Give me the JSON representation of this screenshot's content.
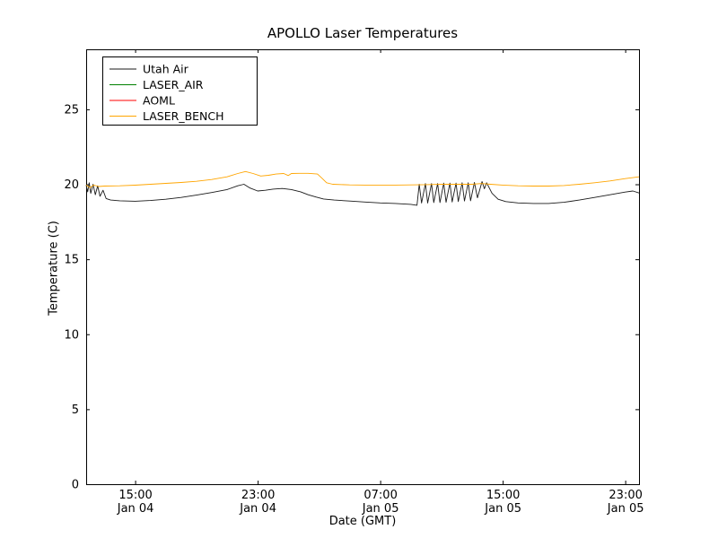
{
  "chart_data": {
    "type": "line",
    "title": "APOLLO Laser Temperatures",
    "xlabel": "Date (GMT)",
    "ylabel": "Temperature (C)",
    "x_unit": "hours since Jan 04 00:00 GMT",
    "xlim": [
      11.8,
      47.9
    ],
    "ylim": [
      0,
      29
    ],
    "grid": false,
    "legend_position": "upper left",
    "yticks": [
      0,
      5,
      10,
      15,
      20,
      25
    ],
    "xticks": [
      {
        "t": 15,
        "time": "15:00",
        "date": "Jan 04"
      },
      {
        "t": 23,
        "time": "23:00",
        "date": "Jan 04"
      },
      {
        "t": 31,
        "time": "07:00",
        "date": "Jan 05"
      },
      {
        "t": 39,
        "time": "15:00",
        "date": "Jan 05"
      },
      {
        "t": 47,
        "time": "23:00",
        "date": "Jan 05"
      }
    ],
    "series": [
      {
        "name": "Utah Air",
        "color": "#1a1a1a",
        "points": [
          [
            11.8,
            19.95
          ],
          [
            11.9,
            19.5
          ],
          [
            12.0,
            20.1
          ],
          [
            12.1,
            19.4
          ],
          [
            12.25,
            20.0
          ],
          [
            12.4,
            19.3
          ],
          [
            12.55,
            19.9
          ],
          [
            12.7,
            19.2
          ],
          [
            12.9,
            19.6
          ],
          [
            13.1,
            19.05
          ],
          [
            13.4,
            18.95
          ],
          [
            14,
            18.9
          ],
          [
            15,
            18.87
          ],
          [
            16,
            18.92
          ],
          [
            17,
            19.0
          ],
          [
            18,
            19.12
          ],
          [
            19,
            19.28
          ],
          [
            20,
            19.45
          ],
          [
            21,
            19.65
          ],
          [
            21.7,
            19.9
          ],
          [
            22.1,
            20.0
          ],
          [
            22.5,
            19.75
          ],
          [
            23,
            19.55
          ],
          [
            23.5,
            19.6
          ],
          [
            24,
            19.68
          ],
          [
            24.6,
            19.72
          ],
          [
            25.2,
            19.65
          ],
          [
            25.8,
            19.5
          ],
          [
            26.3,
            19.3
          ],
          [
            26.8,
            19.15
          ],
          [
            27.3,
            19.02
          ],
          [
            28,
            18.95
          ],
          [
            29,
            18.88
          ],
          [
            30,
            18.82
          ],
          [
            31,
            18.76
          ],
          [
            32,
            18.72
          ],
          [
            33,
            18.66
          ],
          [
            33.4,
            18.6
          ],
          [
            33.55,
            20.0
          ],
          [
            33.7,
            18.75
          ],
          [
            33.95,
            20.05
          ],
          [
            34.1,
            18.75
          ],
          [
            34.35,
            20.05
          ],
          [
            34.5,
            18.78
          ],
          [
            34.75,
            20.05
          ],
          [
            34.9,
            18.78
          ],
          [
            35.15,
            20.08
          ],
          [
            35.3,
            18.8
          ],
          [
            35.55,
            20.08
          ],
          [
            35.7,
            18.82
          ],
          [
            35.95,
            20.08
          ],
          [
            36.1,
            18.85
          ],
          [
            36.35,
            20.1
          ],
          [
            36.5,
            18.88
          ],
          [
            36.75,
            20.1
          ],
          [
            36.9,
            18.9
          ],
          [
            37.15,
            20.12
          ],
          [
            37.35,
            19.1
          ],
          [
            37.65,
            20.18
          ],
          [
            37.8,
            19.7
          ],
          [
            37.95,
            20.1
          ],
          [
            38.3,
            19.4
          ],
          [
            38.7,
            19.0
          ],
          [
            39.2,
            18.85
          ],
          [
            40,
            18.76
          ],
          [
            41,
            18.72
          ],
          [
            42,
            18.72
          ],
          [
            43,
            18.8
          ],
          [
            44,
            18.95
          ],
          [
            45,
            19.12
          ],
          [
            46,
            19.3
          ],
          [
            47,
            19.48
          ],
          [
            47.5,
            19.55
          ],
          [
            47.9,
            19.42
          ]
        ]
      },
      {
        "name": "LASER_AIR",
        "color": "#008000",
        "points": []
      },
      {
        "name": "AOML",
        "color": "#ff0000",
        "points": []
      },
      {
        "name": "LASER_BENCH",
        "color": "#ffa500",
        "points": [
          [
            11.8,
            19.95
          ],
          [
            12.05,
            19.78
          ],
          [
            12.3,
            19.95
          ],
          [
            12.6,
            19.85
          ],
          [
            13,
            19.88
          ],
          [
            14,
            19.9
          ],
          [
            15,
            19.94
          ],
          [
            16,
            20.0
          ],
          [
            17,
            20.06
          ],
          [
            18,
            20.12
          ],
          [
            19,
            20.2
          ],
          [
            20,
            20.32
          ],
          [
            21,
            20.5
          ],
          [
            21.7,
            20.72
          ],
          [
            22.2,
            20.85
          ],
          [
            22.7,
            20.72
          ],
          [
            23.2,
            20.55
          ],
          [
            23.7,
            20.6
          ],
          [
            24.2,
            20.68
          ],
          [
            24.7,
            20.72
          ],
          [
            25.0,
            20.58
          ],
          [
            25.2,
            20.72
          ],
          [
            25.7,
            20.73
          ],
          [
            26.3,
            20.73
          ],
          [
            26.9,
            20.68
          ],
          [
            27.2,
            20.4
          ],
          [
            27.5,
            20.1
          ],
          [
            27.9,
            20.0
          ],
          [
            29,
            19.96
          ],
          [
            30,
            19.95
          ],
          [
            31,
            19.95
          ],
          [
            32,
            19.95
          ],
          [
            33,
            19.96
          ],
          [
            34,
            19.98
          ],
          [
            35,
            20.0
          ],
          [
            36,
            20.0
          ],
          [
            37,
            20.0
          ],
          [
            37.6,
            20.05
          ],
          [
            38.2,
            20.0
          ],
          [
            39,
            19.95
          ],
          [
            40,
            19.9
          ],
          [
            41,
            19.88
          ],
          [
            42,
            19.88
          ],
          [
            43,
            19.92
          ],
          [
            44,
            20.0
          ],
          [
            45,
            20.1
          ],
          [
            46,
            20.22
          ],
          [
            47,
            20.38
          ],
          [
            47.9,
            20.5
          ]
        ]
      }
    ]
  }
}
